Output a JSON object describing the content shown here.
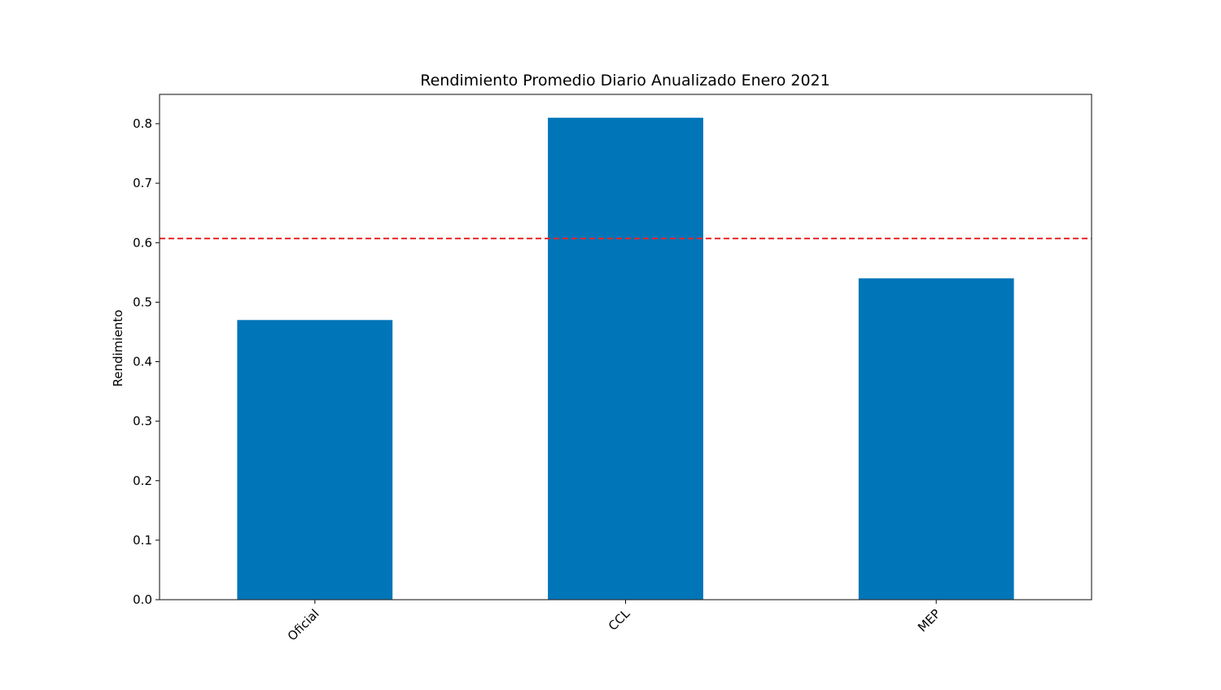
{
  "chart_data": {
    "type": "bar",
    "title": "Rendimiento Promedio Diario Anualizado Enero 2021",
    "xlabel": "",
    "ylabel": "Rendimiento",
    "categories": [
      "Oficial",
      "CCL",
      "MEP"
    ],
    "values": [
      0.47,
      0.81,
      0.54
    ],
    "ylim": [
      0,
      0.85
    ],
    "yticks": [
      "0.0",
      "0.1",
      "0.2",
      "0.3",
      "0.4",
      "0.5",
      "0.6",
      "0.7",
      "0.8"
    ],
    "reference_line": {
      "value": 0.607,
      "style": "dashed",
      "color": "#e8282b"
    },
    "bar_color": "#0075b8",
    "grid": false,
    "legend": "none"
  }
}
